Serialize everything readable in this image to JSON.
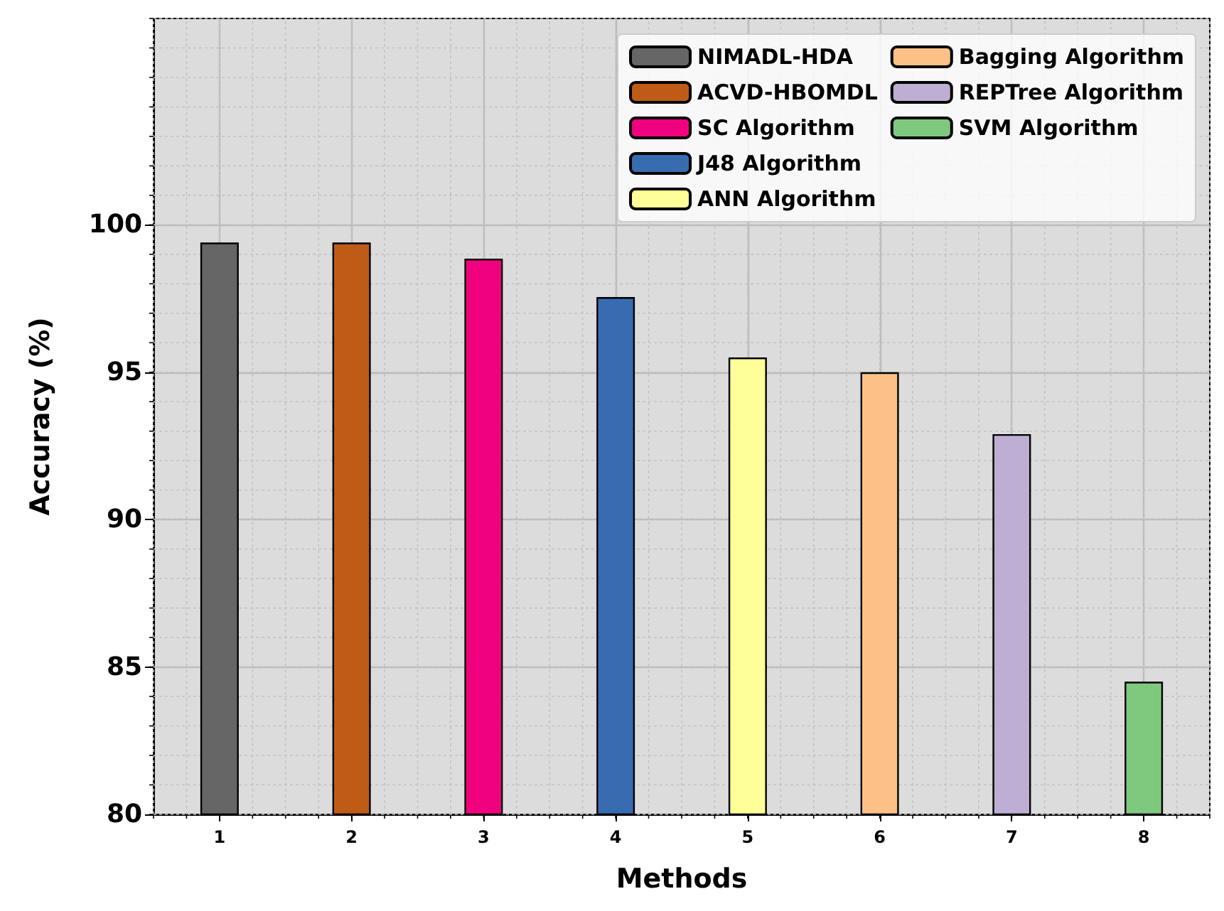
{
  "chart_data": {
    "type": "bar",
    "xlabel": "Methods",
    "ylabel": "Accuracy (%)",
    "x": [
      1,
      2,
      3,
      4,
      5,
      6,
      7,
      8
    ],
    "series": [
      {
        "name": "NIMADL-HDA",
        "color": "#666666",
        "values": [
          99.4,
          null,
          null,
          null,
          null,
          null,
          null,
          null
        ]
      },
      {
        "name": "ACVD-HBOMDL",
        "color": "#bf5b17",
        "values": [
          null,
          99.4,
          null,
          null,
          null,
          null,
          null,
          null
        ]
      },
      {
        "name": "SC Algorithm",
        "color": "#f0027f",
        "values": [
          null,
          null,
          98.85,
          null,
          null,
          null,
          null,
          null
        ]
      },
      {
        "name": "J48 Algorithm",
        "color": "#386cb0",
        "values": [
          null,
          null,
          null,
          97.55,
          null,
          null,
          null,
          null
        ]
      },
      {
        "name": "ANN Algorithm",
        "color": "#ffff99",
        "values": [
          null,
          null,
          null,
          null,
          95.5,
          null,
          null,
          null
        ]
      },
      {
        "name": "Bagging Algorithm",
        "color": "#fdc086",
        "values": [
          null,
          null,
          null,
          null,
          null,
          95.0,
          null,
          null
        ]
      },
      {
        "name": "REPTree Algorithm",
        "color": "#beaed4",
        "values": [
          null,
          null,
          null,
          null,
          null,
          null,
          92.9,
          null
        ]
      },
      {
        "name": "SVM Algorithm",
        "color": "#7fc97f",
        "values": [
          null,
          null,
          null,
          null,
          null,
          null,
          null,
          84.5
        ]
      }
    ],
    "xlim": [
      0.5,
      8.5
    ],
    "xticks": [
      1,
      2,
      3,
      4,
      5,
      6,
      7,
      8
    ],
    "ylim": [
      80,
      107
    ],
    "yticks": [
      80,
      85,
      90,
      95,
      100
    ],
    "grid": true,
    "legend": "top right"
  }
}
